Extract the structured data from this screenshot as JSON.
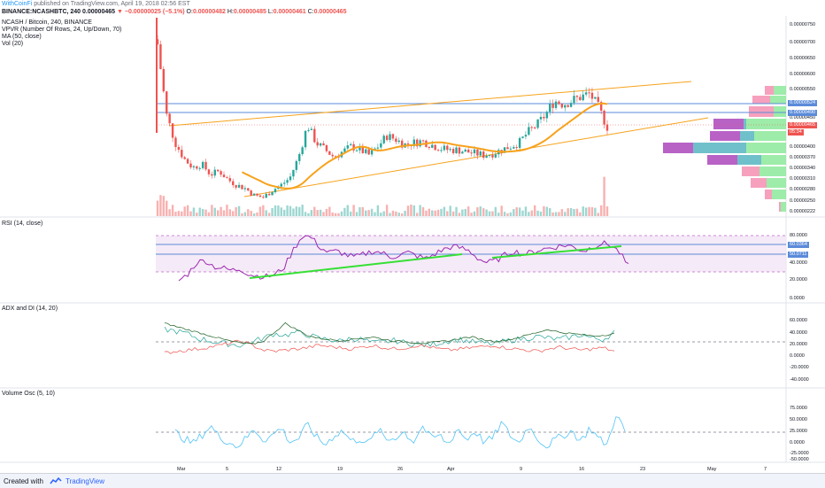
{
  "header": {
    "author": "WithCoinFi",
    "published_text": "published on TradingView.com, April 19, 2018 02:56 EST",
    "symbol_line": "BINANCE:NCASHBTC, 240",
    "price_open": "0.00000465",
    "change_text": "−0.00000025 (−5.1%)",
    "ohlc": {
      "o_label": "O:",
      "o": "0.00000482",
      "h_label": "H:",
      "h": "0.00000485",
      "l_label": "L:",
      "l": "0.00000461",
      "c_label": "C:",
      "c": "0.00000465"
    }
  },
  "legend": {
    "title": "NCASH / Bitcoin, 240, BINANCE",
    "vpvr": "VPVR (Number Of Rows, 24, Up/Down, 70)",
    "ma": "MA (50, close)",
    "vol": "Vol (20)"
  },
  "colors": {
    "up": "#26a69a",
    "down": "#ef5350",
    "ma": "#f7a21b",
    "channel": "#f7a21b",
    "hline": "#5b8bd9",
    "rsi": "#9c27b0",
    "trend": "#35e035",
    "plus_di": "#26a69a",
    "minus_di": "#ef5350",
    "adx": "#1b5e20",
    "vosc": "#4fc3f7"
  },
  "chart_data": [
    {
      "type": "candlestick",
      "title": "NCASH / Bitcoin, 240, BINANCE",
      "yticks": [
        "0.00000750",
        "0.00000700",
        "0.00000650",
        "0.00000600",
        "0.00000550",
        "0.00000450",
        "0.00000400",
        "0.00000370",
        "0.00000340",
        "0.00000310",
        "0.00000280",
        "0.00000250",
        "0.00000222"
      ],
      "price_tags": [
        {
          "value": "0.00000524",
          "kind": "hline"
        },
        {
          "value": "0.00000490",
          "kind": "hline"
        },
        {
          "value": "0.00000465",
          "kind": "last"
        },
        {
          "value": "05:34",
          "kind": "countdown"
        }
      ],
      "ylim": [
        2.1e-06,
        7.7e-06
      ],
      "overlays": [
        "MA (50, close)",
        "VPVR (Number Of Rows, 24, Up/Down, 70)",
        "Vol (20)"
      ],
      "hlines": [
        5.24e-06,
        4.9e-06
      ],
      "approx_closes": [
        7e-06,
        5e-06,
        4.2e-06,
        3.75e-06,
        3.5e-06,
        3.6e-06,
        3.3e-06,
        3.4e-06,
        3.15e-06,
        3e-06,
        2.9e-06,
        2.7e-06,
        2.65e-06,
        2.85e-06,
        3e-06,
        3.2e-06,
        3.8e-06,
        4.7e-06,
        4.2e-06,
        4e-06,
        3.8e-06,
        3.95e-06,
        4.1e-06,
        4e-06,
        3.85e-06,
        4.1e-06,
        4.4e-06,
        4.3e-06,
        4.15e-06,
        4.2e-06,
        4.25e-06,
        4.15e-06,
        4.05e-06,
        4e-06,
        4e-06,
        3.95e-06,
        3.9e-06,
        3.85e-06,
        3.9e-06,
        4e-06,
        4.1e-06,
        4.2e-06,
        4.5e-06,
        4.7e-06,
        5e-06,
        5.4e-06,
        5.3e-06,
        5.4e-06,
        5.5e-06,
        5.6e-06,
        5.2e-06,
        4.65e-06
      ]
    },
    {
      "type": "line",
      "title": "RSI (14, close)",
      "yticks": [
        "80.0000",
        "40.0000",
        "20.0000",
        "0.0000"
      ],
      "value_tags": [
        "60.0364",
        "50.0711"
      ],
      "band": [
        30,
        70
      ],
      "approx_values": [
        22,
        30,
        45,
        48,
        40,
        38,
        35,
        37,
        30,
        28,
        27,
        30,
        40,
        62,
        80,
        78,
        65,
        58,
        60,
        55,
        52,
        56,
        60,
        58,
        52,
        55,
        58,
        54,
        50,
        56,
        62,
        66,
        64,
        60,
        50,
        45,
        48,
        55,
        60,
        56,
        58,
        62,
        64,
        66,
        68,
        64,
        60,
        66,
        70,
        68,
        58,
        40
      ]
    },
    {
      "type": "line",
      "title": "ADX and DI (14, 20)",
      "yticks": [
        "60.0000",
        "40.0000",
        "20.0000",
        "0.0000",
        "-20.0000",
        "-40.0000"
      ],
      "series": [
        {
          "name": "+DI",
          "approx_values": [
            45,
            42,
            38,
            30,
            26,
            22,
            20,
            18,
            24,
            30,
            38,
            35,
            40,
            36,
            30,
            28,
            25,
            30,
            28,
            22,
            24,
            26,
            22,
            20,
            18,
            22,
            26,
            28,
            24,
            22,
            20,
            25,
            28,
            30,
            33,
            30,
            28,
            32,
            36,
            30,
            28,
            40
          ]
        },
        {
          "name": "-DI",
          "approx_values": [
            5,
            8,
            10,
            12,
            15,
            18,
            22,
            25,
            18,
            10,
            8,
            10,
            12,
            14,
            18,
            16,
            14,
            12,
            15,
            18,
            14,
            12,
            14,
            18,
            16,
            12,
            10,
            12,
            14,
            16,
            18,
            14,
            12,
            10,
            8,
            12,
            15,
            12,
            10,
            12,
            14,
            8
          ]
        },
        {
          "name": "ADX",
          "approx_values": [
            55,
            50,
            45,
            40,
            35,
            30,
            25,
            22,
            20,
            25,
            40,
            55,
            45,
            35,
            30,
            28,
            26,
            28,
            30,
            32,
            28,
            25,
            24,
            22,
            22,
            24,
            26,
            30,
            32,
            28,
            25,
            26,
            30,
            35,
            40,
            45,
            40,
            38,
            36,
            34,
            35,
            38
          ]
        }
      ]
    },
    {
      "type": "line",
      "title": "Volume Osc (5, 10)",
      "yticks": [
        "75.0000",
        "50.0000",
        "25.0000",
        "0.0000",
        "-25.0000",
        "-50.0000"
      ],
      "approx_values": [
        0,
        -20,
        -35,
        -10,
        20,
        -15,
        -30,
        -45,
        -20,
        10,
        -25,
        -10,
        15,
        -30,
        -20,
        25,
        -15,
        -40,
        -10,
        5,
        -30,
        -20,
        -35,
        10,
        -25,
        -15,
        0,
        -30,
        20,
        -20,
        -10,
        -40,
        15,
        -25,
        5,
        -30,
        -20,
        30,
        -10,
        -35,
        20,
        -15,
        -45,
        -25,
        -10,
        5,
        -30,
        15,
        -20,
        -40,
        60,
        0
      ]
    }
  ],
  "x_axis": {
    "labels": [
      "Mar",
      "5",
      "12",
      "19",
      "26",
      "Apr",
      "9",
      "16",
      "23",
      "May",
      "7"
    ]
  },
  "footer": {
    "created_with": "Created with",
    "brand": "TradingView"
  }
}
